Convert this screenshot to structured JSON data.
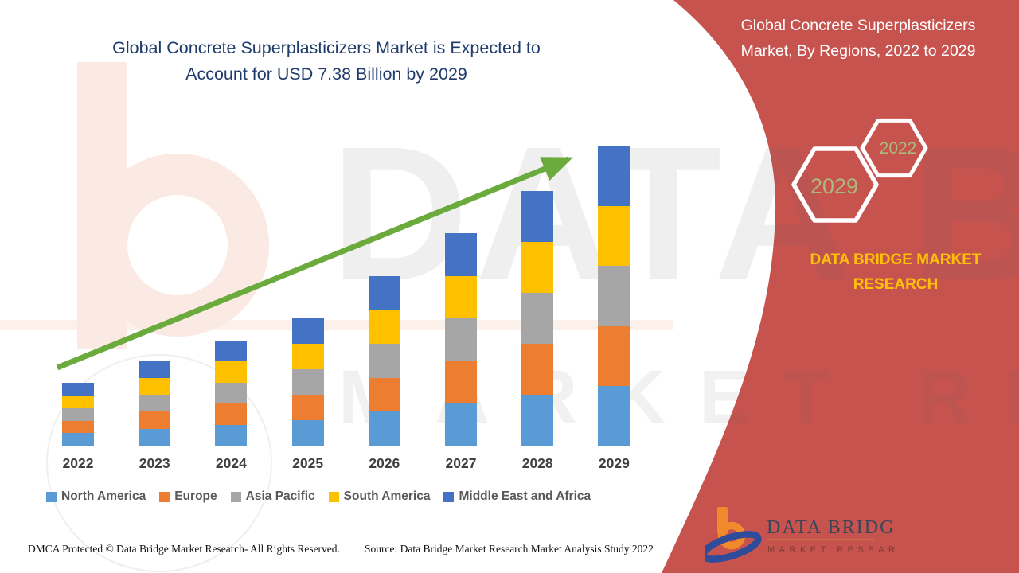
{
  "title": {
    "line1": "Global Concrete Superplasticizers Market is Expected to",
    "line2": "Account for USD 7.38 Billion by 2029"
  },
  "side_panel": {
    "heading_line1": "Global Concrete Superplasticizers",
    "heading_line2": "Market, By Regions, 2022 to 2029",
    "hexagons": [
      {
        "label": "2029"
      },
      {
        "label": "2022"
      }
    ],
    "brand_line1": "DATA BRIDGE MARKET",
    "brand_line2": "RESEARCH"
  },
  "chart_data": {
    "type": "bar",
    "stacked": true,
    "title": "Global Concrete Superplasticizers Market, By Regions, 2022 to 2029",
    "unit": "USD Billion",
    "categories": [
      "2022",
      "2023",
      "2024",
      "2025",
      "2026",
      "2027",
      "2028",
      "2029"
    ],
    "series": [
      {
        "name": "North America",
        "color": "#5B9BD5",
        "values": [
          0.31,
          0.42,
          0.52,
          0.63,
          0.84,
          1.05,
          1.26,
          1.48
        ]
      },
      {
        "name": "Europe",
        "color": "#ED7D31",
        "values": [
          0.31,
          0.42,
          0.52,
          0.63,
          0.84,
          1.05,
          1.26,
          1.48
        ]
      },
      {
        "name": "Asia Pacific",
        "color": "#A6A6A6",
        "values": [
          0.31,
          0.42,
          0.52,
          0.63,
          0.84,
          1.05,
          1.26,
          1.48
        ]
      },
      {
        "name": "South America",
        "color": "#FFC000",
        "values": [
          0.31,
          0.42,
          0.52,
          0.63,
          0.84,
          1.05,
          1.26,
          1.48
        ]
      },
      {
        "name": "Middle East and Africa",
        "color": "#4472C4",
        "values": [
          0.31,
          0.42,
          0.52,
          0.63,
          0.84,
          1.05,
          1.26,
          1.48
        ]
      }
    ],
    "totals": [
      1.54,
      2.11,
      2.62,
      3.17,
      4.19,
      5.23,
      6.3,
      7.38
    ],
    "ylim": [
      0,
      7.5
    ],
    "gridlines": false,
    "legend_position": "bottom",
    "trend_arrow": true
  },
  "legend_labels": [
    "North America",
    "Europe",
    "Asia Pacific",
    "South America",
    "Middle East and Africa"
  ],
  "watermark": {
    "line1": "DATA BRIDGE",
    "line2": "MARKET RESEARCH"
  },
  "logo": {
    "line1": "DATA BRIDGE",
    "line2": "MARKET RESEARCH"
  },
  "footer": {
    "left": "DMCA Protected © Data Bridge Market Research- All Rights Reserved.",
    "right": "Source: Data Bridge Market Research Market Analysis Study 2022"
  },
  "colors": {
    "panel_red": "#C7534F",
    "title_navy": "#1F3B6C",
    "brand_gold": "#FFC008",
    "hex_year_text": "#A9BA7C",
    "arrow_green": "#6BAB3D",
    "axis_gray": "#D5D5D5",
    "legend_text": "#595959"
  }
}
